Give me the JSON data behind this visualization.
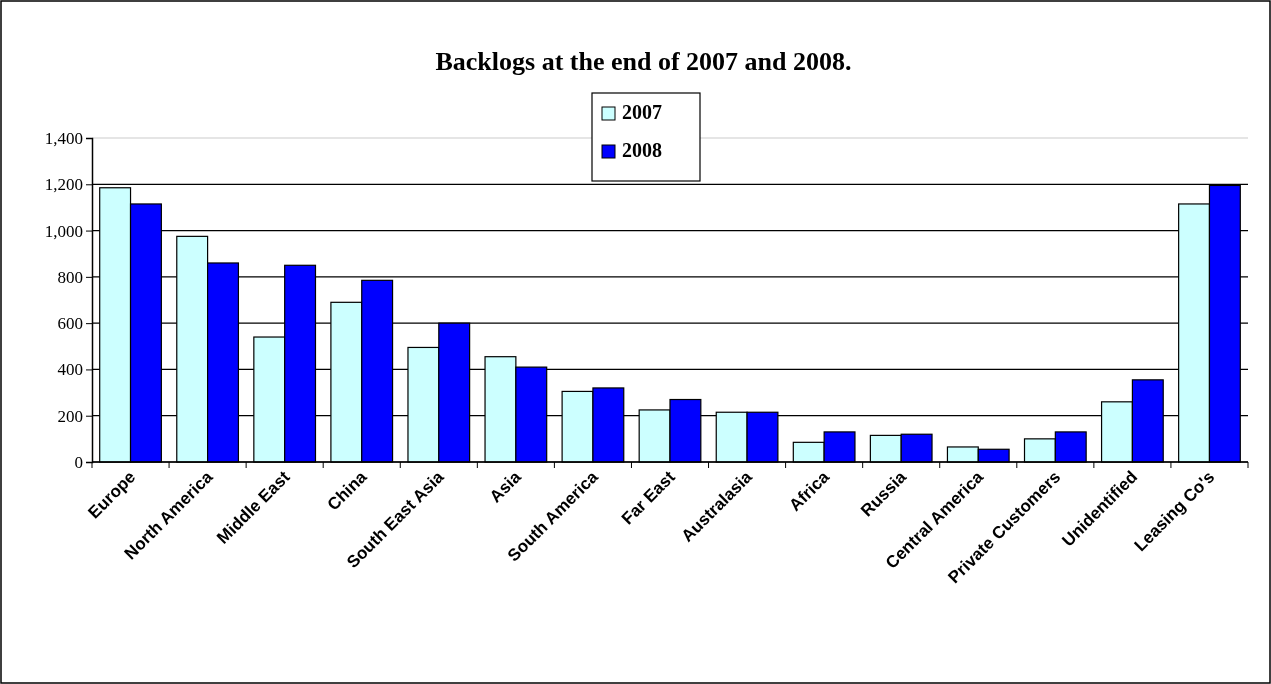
{
  "chart_data": {
    "type": "bar",
    "title": "Backlogs at the end of 2007 and 2008.",
    "categories": [
      "Europe",
      "North America",
      "Middle East",
      "China",
      "South East Asia",
      "Asia",
      "South America",
      "Far East",
      "Australasia",
      "Africa",
      "Russia",
      "Central America",
      "Private Customers",
      "Unidentified",
      "Leasing Co's"
    ],
    "series": [
      {
        "name": "2007",
        "color": "#ccffff",
        "values": [
          1185,
          975,
          540,
          690,
          495,
          455,
          305,
          225,
          215,
          85,
          115,
          65,
          100,
          260,
          1115
        ]
      },
      {
        "name": "2008",
        "color": "#0000ff",
        "values": [
          1115,
          860,
          850,
          785,
          600,
          410,
          320,
          270,
          215,
          130,
          120,
          55,
          130,
          355,
          1195
        ]
      }
    ],
    "ylim": [
      0,
      1400
    ],
    "yticks": [
      {
        "value": 0,
        "label": "0"
      },
      {
        "value": 200,
        "label": "200"
      },
      {
        "value": 400,
        "label": "400"
      },
      {
        "value": 600,
        "label": "600"
      },
      {
        "value": 800,
        "label": "800"
      },
      {
        "value": 1000,
        "label": "1,000"
      },
      {
        "value": 1200,
        "label": "1,200"
      },
      {
        "value": 1400,
        "label": "1,400"
      }
    ],
    "grid": "y",
    "legend": "top"
  }
}
